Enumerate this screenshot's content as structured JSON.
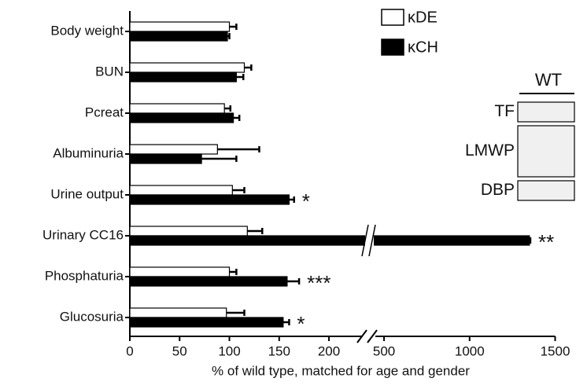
{
  "chart_data": {
    "type": "bar",
    "orientation": "horizontal",
    "x_label": "% of wild type, matched for age and gender",
    "categories": [
      "Body weight",
      "BUN",
      "Pcreat",
      "Albuminuria",
      "Urine output",
      "Urinary CC16",
      "Phosphaturia",
      "Glucosuria"
    ],
    "series": [
      {
        "name": "κDE",
        "color": "#ffffff",
        "values": [
          100,
          115,
          95,
          88,
          103,
          118,
          100,
          97
        ],
        "errors": [
          7,
          7,
          6,
          42,
          12,
          15,
          7,
          18
        ]
      },
      {
        "name": "κCH",
        "color": "#000000",
        "values": [
          98,
          107,
          104,
          72,
          160,
          1350,
          158,
          154
        ],
        "errors": [
          2,
          7,
          6,
          35,
          5,
          5,
          12,
          6
        ]
      }
    ],
    "annotations": [
      {
        "category": "Urine output",
        "text": "*"
      },
      {
        "category": "Urinary CC16",
        "text": "**"
      },
      {
        "category": "Phosphaturia",
        "text": "***"
      },
      {
        "category": "Glucosuria",
        "text": "*"
      }
    ],
    "xlim": [
      0,
      1500
    ],
    "xbreak": [
      230,
      440
    ],
    "xticks": [
      0,
      50,
      100,
      150,
      200,
      500,
      1000,
      1500
    ],
    "inset": {
      "title": "WT",
      "labels": [
        "TF",
        "LMWP",
        "DBP"
      ]
    }
  }
}
